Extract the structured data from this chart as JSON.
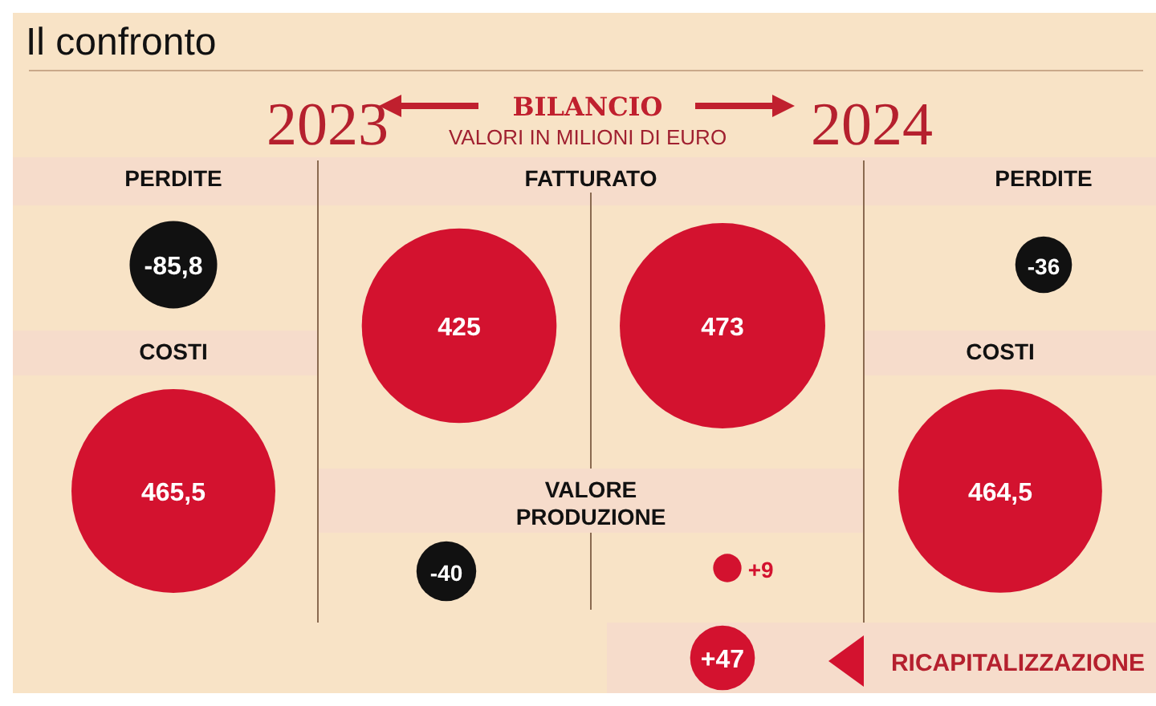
{
  "chart_data": {
    "type": "other",
    "title": "Il confronto",
    "subtitle": "BILANCIO",
    "annotations": [
      "VALORI IN MILIONI DI EURO"
    ],
    "categories": [
      "PERDITE",
      "COSTI",
      "FATTURATO",
      "VALORE PRODUZIONE",
      "RICAPITALIZZAZIONE"
    ],
    "series": [
      {
        "name": "2023",
        "values": [
          -85.8,
          465.5,
          425,
          -40,
          null
        ],
        "value_labels": [
          "-85,8",
          "465,5",
          "425",
          "-40",
          null
        ],
        "colors": [
          "#111111",
          "#d3122f",
          "#d3122f",
          "#111111",
          null
        ]
      },
      {
        "name": "2024",
        "values": [
          -36,
          464.5,
          473,
          9,
          47
        ],
        "value_labels": [
          "-36",
          "464,5",
          "473",
          "+9",
          "+47"
        ],
        "colors": [
          "#111111",
          "#d3122f",
          "#d3122f",
          "#d3122f",
          "#d3122f"
        ]
      }
    ]
  }
}
